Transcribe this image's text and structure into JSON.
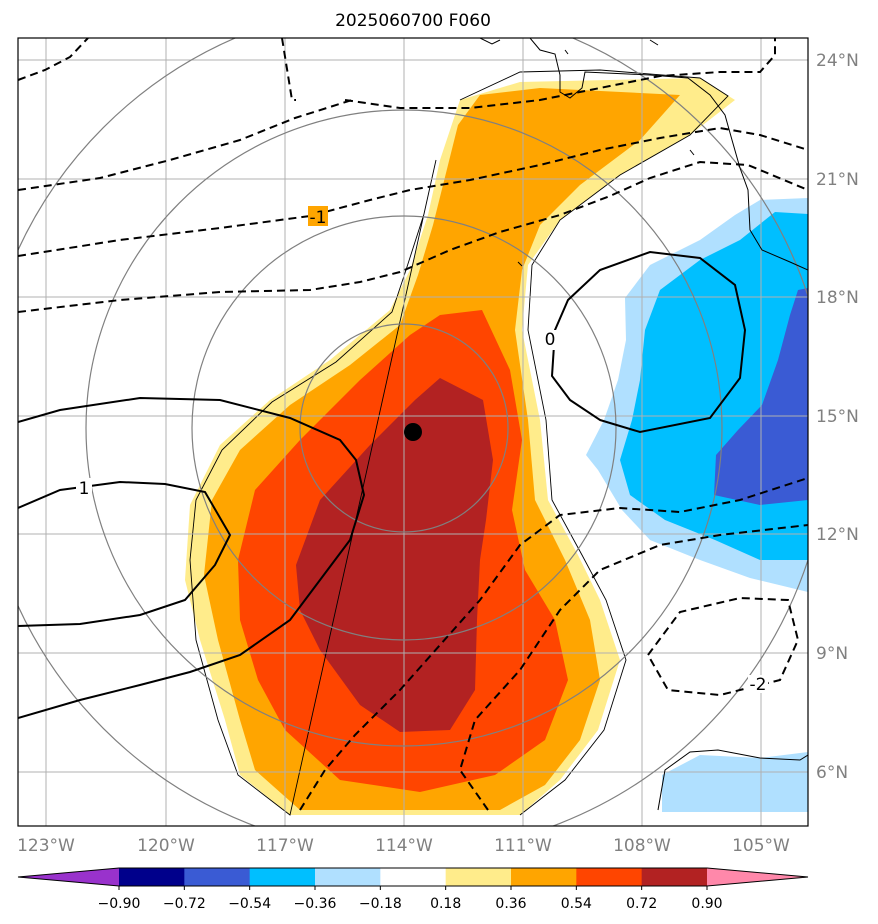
{
  "title": "2025060700 F060",
  "map": {
    "lon_labels": [
      "123°W",
      "120°W",
      "117°W",
      "114°W",
      "111°W",
      "108°W",
      "105°W"
    ],
    "lat_labels": [
      "24°N",
      "21°N",
      "18°N",
      "15°N",
      "12°N",
      "9°N",
      "6°N"
    ],
    "storm_center": {
      "lon": "113.8°W",
      "lat": "14.6°N"
    },
    "contour_labels": [
      "-1",
      "0",
      "1",
      "-2"
    ]
  },
  "colorbar": {
    "ticks": [
      "−0.90",
      "−0.72",
      "−0.54",
      "−0.36",
      "−0.18",
      "0.18",
      "0.36",
      "0.54",
      "0.72",
      "0.90"
    ],
    "colors": [
      "#9932cc",
      "#00008b",
      "#3a5bd4",
      "#00bfff",
      "#b0e0ff",
      "#ffffff",
      "#ffec8b",
      "#ffa500",
      "#ff4500",
      "#b22222",
      "#ff88aa"
    ]
  },
  "colors": {
    "fill_036": "#ffec8b",
    "fill_054": "#ffa500",
    "fill_072": "#ff4500",
    "fill_090": "#b22222",
    "fill_neg018": "#b0e0ff",
    "fill_neg036": "#00bfff",
    "fill_neg054": "#3a5bd4",
    "grid": "#b0b0b0",
    "range_rings": "#808080"
  }
}
